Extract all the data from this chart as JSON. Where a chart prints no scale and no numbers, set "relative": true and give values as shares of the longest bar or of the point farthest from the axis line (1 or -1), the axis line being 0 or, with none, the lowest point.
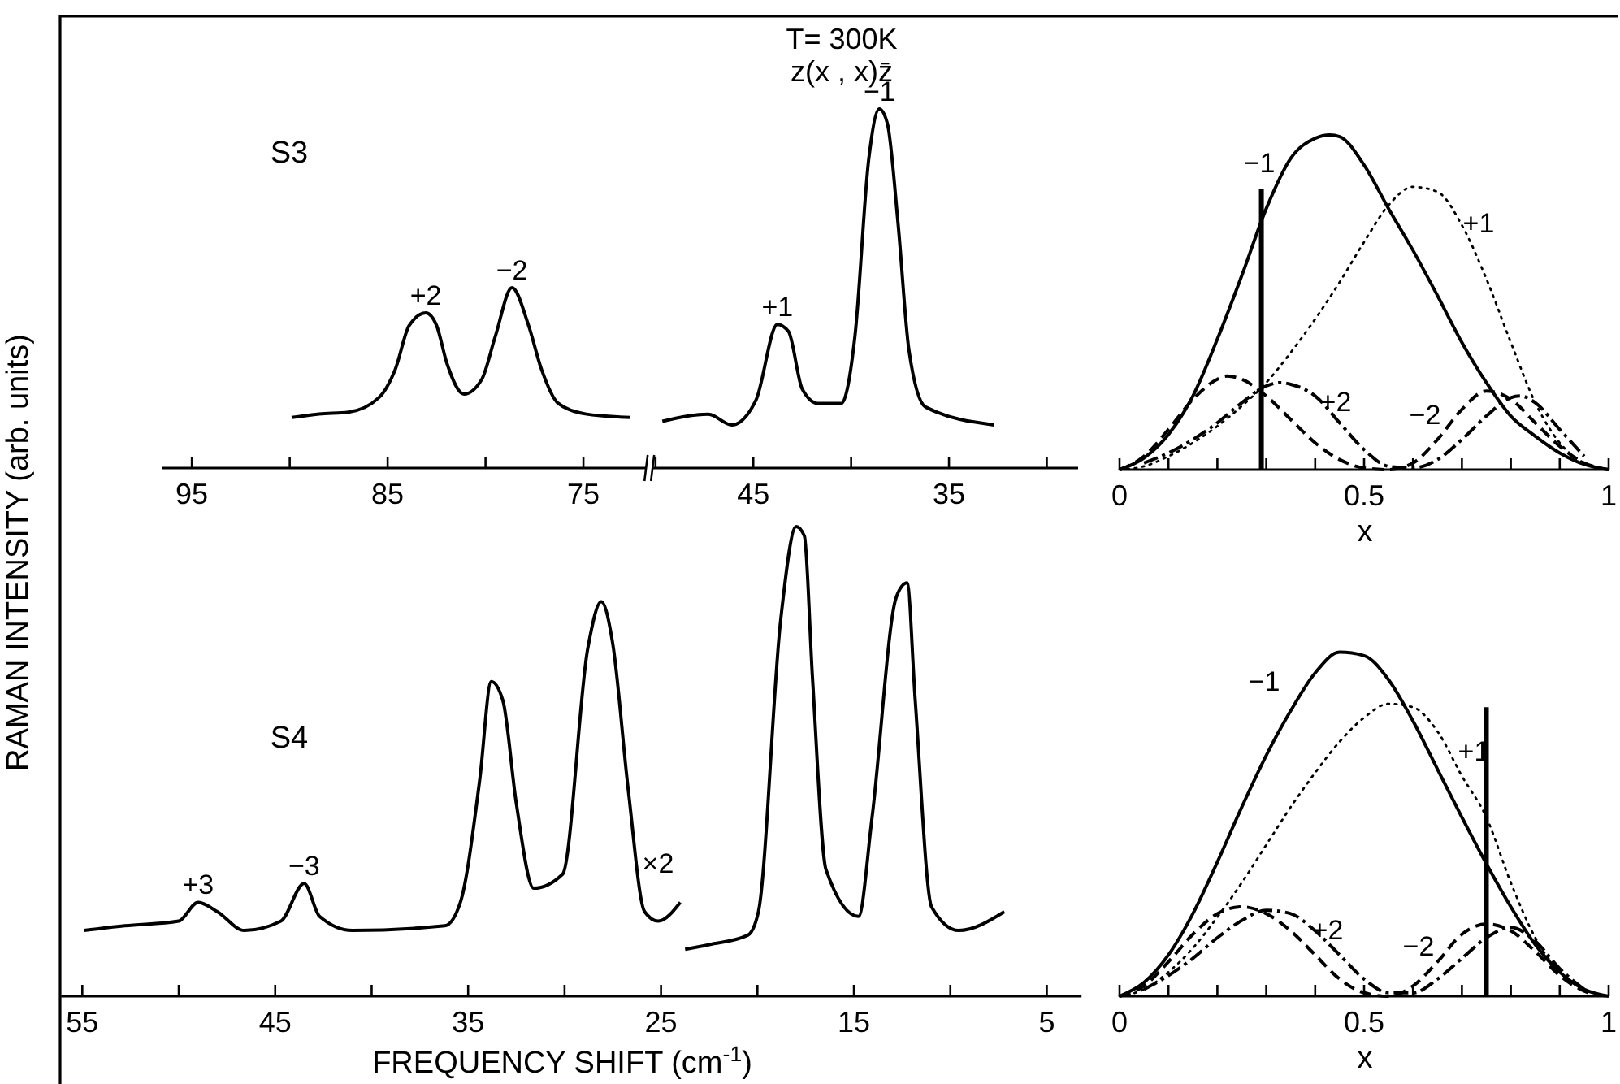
{
  "chart_data": [
    {
      "type": "line",
      "relative": true,
      "title": "S3",
      "ylabel": "RAMAN INTENSITY (arb. units)",
      "xlim": [
        96.5,
        71.8
      ],
      "xticks": [
        95,
        {
          "value": 90,
          "label": null
        },
        85,
        {
          "value": 80,
          "label": null
        },
        75
      ],
      "series": [
        {
          "color": "#000000",
          "line_style": "solid",
          "x": [
            89.9,
            88.5,
            87,
            85.45,
            84.6,
            83.9,
            83.05,
            82.5,
            81.97,
            81.1,
            80.2,
            79.5,
            78.65,
            77.8,
            77.15,
            76.3,
            74.9,
            72.6
          ],
          "values": [
            0.28,
            0.3,
            0.31,
            0.39,
            0.55,
            0.79,
            0.86,
            0.79,
            0.58,
            0.41,
            0.49,
            0.73,
            1,
            0.79,
            0.55,
            0.36,
            0.3,
            0.28
          ]
        }
      ],
      "annotations": [
        "T= 300K",
        "z(x , x)z̄",
        {
          "text": "+2",
          "x": 83.05,
          "y": 0.86
        },
        {
          "text": "−2",
          "x": 78.65,
          "y": 1
        }
      ]
    },
    {
      "type": "line",
      "relative": true,
      "xlim": [
        50.2,
        28.4
      ],
      "xticks": [
        {
          "value": 50,
          "label": null
        },
        45,
        {
          "value": 40,
          "label": null
        },
        35,
        {
          "value": 30,
          "label": null
        }
      ],
      "series": [
        {
          "color": "#000000",
          "line_style": "solid",
          "x": [
            49.65,
            47.3,
            46.1,
            44.86,
            43.77,
            43.2,
            42.5,
            41.7,
            40.5,
            39.8,
            39.1,
            38.56,
            38.15,
            37.6,
            37.05,
            36.2,
            32.7
          ],
          "values": [
            0.13,
            0.15,
            0.12,
            0.19,
            0.4,
            0.38,
            0.22,
            0.18,
            0.18,
            0.37,
            0.86,
            1,
            0.96,
            0.68,
            0.33,
            0.17,
            0.12
          ]
        }
      ],
      "annotations": [
        {
          "text": "+1",
          "x": 43.77,
          "y": 0.4
        },
        {
          "text": "−1",
          "x": 38.56,
          "y": 1
        }
      ]
    },
    {
      "type": "line",
      "relative": true,
      "title": "S4",
      "xlabel": "FREQUENCY SHIFT (cm$^{-1}$)",
      "xlim": [
        56.1,
        3.2
      ],
      "xticks": [
        55,
        {
          "value": 50,
          "label": null
        },
        45,
        {
          "value": 40,
          "label": null
        },
        35,
        {
          "value": 30,
          "label": null
        },
        25,
        {
          "value": 20,
          "label": null
        },
        15,
        {
          "value": 10,
          "label": null
        },
        5
      ],
      "series": [
        {
          "color": "#000000",
          "line_style": "solid",
          "x": [
            54.9,
            52.8,
            50,
            49,
            48,
            46.6,
            44.7,
            43.5,
            42.7,
            41,
            36.2,
            35.4,
            34.4,
            33.8,
            33.2,
            32.5,
            31.6,
            30.1,
            28.8,
            28.1,
            27.5,
            26.7,
            25.85,
            25.15,
            24
          ],
          "values": [
            0.14,
            0.15,
            0.16,
            0.2,
            0.18,
            0.14,
            0.16,
            0.24,
            0.17,
            0.14,
            0.15,
            0.2,
            0.46,
            0.67,
            0.63,
            0.41,
            0.23,
            0.26,
            0.74,
            0.84,
            0.75,
            0.44,
            0.18,
            0.16,
            0.2
          ]
        },
        {
          "color": "#000000",
          "line_style": "solid",
          "x": [
            23.75,
            22.5,
            20.5,
            19.95,
            18.8,
            17.99,
            17.57,
            17.15,
            16.45,
            14.76,
            14.06,
            12.8,
            12.24,
            11.82,
            10.97,
            9.57,
            7.2
          ],
          "values": [
            0.1,
            0.11,
            0.13,
            0.18,
            0.8,
            1,
            0.98,
            0.68,
            0.27,
            0.17,
            0.38,
            0.85,
            0.88,
            0.63,
            0.19,
            0.14,
            0.18
          ]
        }
      ],
      "annotations": [
        "×2",
        {
          "text": "+3",
          "x": 49,
          "y": 0.2
        },
        {
          "text": "−3",
          "x": 43.5,
          "y": 0.24
        }
      ]
    },
    {
      "type": "line",
      "relative": true,
      "xlabel": "x",
      "xlim": [
        0,
        1
      ],
      "xticks": [
        0,
        {
          "value": 0.1,
          "label": null
        },
        {
          "value": 0.2,
          "label": null
        },
        {
          "value": 0.3,
          "label": null
        },
        {
          "value": 0.4,
          "label": null
        },
        {
          "value": 0.5,
          "label": "0.5"
        },
        {
          "value": 0.6,
          "label": null
        },
        {
          "value": 0.7,
          "label": null
        },
        {
          "value": 0.8,
          "label": null
        },
        {
          "value": 0.9,
          "label": null
        },
        1
      ],
      "series": [
        {
          "name": "−1",
          "color": "#000000",
          "line_style": "solid",
          "x": [
            0,
            0.05,
            0.1,
            0.15,
            0.2,
            0.25,
            0.3,
            0.35,
            0.4,
            0.43,
            0.45,
            0.5,
            0.55,
            0.6,
            0.65,
            0.7,
            0.75,
            0.8,
            0.85,
            0.9,
            0.95,
            1
          ],
          "values": [
            0,
            0.035,
            0.105,
            0.22,
            0.39,
            0.58,
            0.78,
            0.93,
            0.99,
            1,
            0.995,
            0.91,
            0.78,
            0.655,
            0.52,
            0.38,
            0.26,
            0.16,
            0.1,
            0.05,
            0.016,
            0
          ]
        },
        {
          "name": "+1",
          "color": "#000000",
          "line_style": "dotted",
          "x": [
            0,
            0.05,
            0.1,
            0.15,
            0.2,
            0.25,
            0.3,
            0.35,
            0.4,
            0.45,
            0.5,
            0.55,
            0.6,
            0.65,
            0.7,
            0.75,
            0.8,
            0.85,
            0.9,
            0.95,
            1
          ],
          "values": [
            0,
            0.01,
            0.04,
            0.08,
            0.13,
            0.19,
            0.26,
            0.35,
            0.45,
            0.56,
            0.68,
            0.79,
            0.845,
            0.83,
            0.73,
            0.57,
            0.38,
            0.2,
            0.08,
            0.02,
            0
          ]
        },
        {
          "name": "−2",
          "color": "#000000",
          "line_style": "dashed",
          "x": [
            0,
            0.05,
            0.1,
            0.15,
            0.2,
            0.22,
            0.25,
            0.3,
            0.35,
            0.4,
            0.45,
            0.5,
            0.55,
            0.6,
            0.65,
            0.7,
            0.75,
            0.8,
            0.85,
            0.9,
            0.95,
            1
          ],
          "values": [
            0,
            0.04,
            0.12,
            0.21,
            0.27,
            0.28,
            0.27,
            0.22,
            0.15,
            0.08,
            0.03,
            0.005,
            0,
            0.02,
            0.09,
            0.18,
            0.235,
            0.21,
            0.14,
            0.07,
            0.02,
            0
          ]
        },
        {
          "name": "+2",
          "color": "#000000",
          "line_style": "dashdot",
          "x": [
            0.05,
            0.1,
            0.15,
            0.2,
            0.25,
            0.3,
            0.33,
            0.35,
            0.4,
            0.45,
            0.5,
            0.55,
            0.6,
            0.65,
            0.7,
            0.75,
            0.8,
            0.82,
            0.85,
            0.9,
            0.95
          ],
          "values": [
            0.02,
            0.05,
            0.09,
            0.14,
            0.2,
            0.25,
            0.26,
            0.255,
            0.22,
            0.14,
            0.06,
            0.01,
            0.005,
            0.03,
            0.09,
            0.16,
            0.215,
            0.22,
            0.2,
            0.12,
            0.04
          ]
        }
      ],
      "ref_lines": [
        {
          "axis": "x",
          "value": 0.29
        }
      ]
    },
    {
      "type": "line",
      "relative": true,
      "xlabel": "x",
      "xlim": [
        0,
        1
      ],
      "xticks": [
        0,
        {
          "value": 0.1,
          "label": null
        },
        {
          "value": 0.2,
          "label": null
        },
        {
          "value": 0.3,
          "label": null
        },
        {
          "value": 0.4,
          "label": null
        },
        {
          "value": 0.5,
          "label": "0.5"
        },
        {
          "value": 0.6,
          "label": null
        },
        {
          "value": 0.7,
          "label": null
        },
        {
          "value": 0.8,
          "label": null
        },
        {
          "value": 0.9,
          "label": null
        },
        1
      ],
      "series": [
        {
          "name": "−1",
          "color": "#000000",
          "line_style": "solid",
          "x": [
            0,
            0.05,
            0.1,
            0.15,
            0.2,
            0.25,
            0.3,
            0.35,
            0.4,
            0.45,
            0.5,
            0.55,
            0.6,
            0.65,
            0.7,
            0.75,
            0.8,
            0.85,
            0.9,
            0.95,
            1
          ],
          "values": [
            0,
            0.04,
            0.12,
            0.24,
            0.39,
            0.55,
            0.7,
            0.83,
            0.94,
            1,
            0.99,
            0.92,
            0.8,
            0.66,
            0.52,
            0.385,
            0.26,
            0.15,
            0.07,
            0.02,
            0
          ]
        },
        {
          "name": "+1",
          "color": "#000000",
          "line_style": "dotted",
          "x": [
            0,
            0.05,
            0.1,
            0.15,
            0.2,
            0.25,
            0.3,
            0.35,
            0.4,
            0.45,
            0.5,
            0.55,
            0.6,
            0.65,
            0.7,
            0.75,
            0.8,
            0.85,
            0.9,
            0.95,
            1
          ],
          "values": [
            0,
            0.02,
            0.07,
            0.14,
            0.23,
            0.33,
            0.44,
            0.55,
            0.65,
            0.74,
            0.81,
            0.85,
            0.84,
            0.77,
            0.64,
            0.52,
            0.33,
            0.17,
            0.07,
            0.02,
            0
          ]
        },
        {
          "name": "−2",
          "color": "#000000",
          "line_style": "dashed",
          "x": [
            0,
            0.05,
            0.1,
            0.15,
            0.2,
            0.25,
            0.3,
            0.35,
            0.4,
            0.45,
            0.5,
            0.55,
            0.6,
            0.65,
            0.7,
            0.75,
            0.8,
            0.85,
            0.9,
            0.95,
            1
          ],
          "values": [
            0,
            0.03,
            0.1,
            0.18,
            0.24,
            0.26,
            0.24,
            0.19,
            0.12,
            0.05,
            0.01,
            0,
            0.03,
            0.1,
            0.18,
            0.21,
            0.19,
            0.13,
            0.06,
            0.015,
            0
          ]
        },
        {
          "name": "+2",
          "color": "#000000",
          "line_style": "dashdot",
          "x": [
            0.05,
            0.1,
            0.15,
            0.2,
            0.25,
            0.3,
            0.35,
            0.4,
            0.45,
            0.5,
            0.55,
            0.6,
            0.65,
            0.7,
            0.75,
            0.8,
            0.85,
            0.9,
            0.95
          ],
          "values": [
            0.02,
            0.06,
            0.11,
            0.17,
            0.22,
            0.25,
            0.24,
            0.19,
            0.12,
            0.05,
            0.01,
            0.01,
            0.05,
            0.11,
            0.17,
            0.2,
            0.16,
            0.08,
            0.02
          ]
        }
      ],
      "ref_lines": [
        {
          "axis": "x",
          "value": 0.75
        }
      ]
    }
  ]
}
